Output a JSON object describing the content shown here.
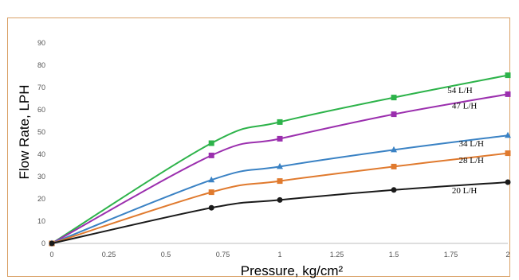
{
  "chart_data": {
    "type": "line",
    "title": "",
    "xlabel": "Pressure, kg/cm²",
    "ylabel": "Flow Rate, LPH",
    "xlim": [
      0,
      2
    ],
    "ylim": [
      0,
      90
    ],
    "x_ticks": [
      "0",
      "0.25",
      "0.5",
      "0.75",
      "1",
      "1.25",
      "1.5",
      "1.75",
      "2"
    ],
    "y_ticks": [
      "0",
      "10",
      "20",
      "30",
      "40",
      "50",
      "60",
      "70",
      "80",
      "90"
    ],
    "grid": false,
    "x": [
      0,
      0.7,
      1,
      1.5,
      2
    ],
    "series": [
      {
        "name": "54 L/H",
        "color": "#2db34a",
        "marker": "square",
        "values": [
          0,
          45,
          54.5,
          65.5,
          75.5
        ]
      },
      {
        "name": "47 L/H",
        "color": "#9b2fae",
        "marker": "square",
        "values": [
          0,
          39.5,
          47,
          58,
          67
        ]
      },
      {
        "name": "34 L/H",
        "color": "#3a82c4",
        "marker": "triangle",
        "values": [
          0,
          28.5,
          34.5,
          42,
          48.5
        ]
      },
      {
        "name": "28 L/H",
        "color": "#e07a2e",
        "marker": "square",
        "values": [
          0,
          23,
          28,
          34.5,
          40.5
        ]
      },
      {
        "name": "20 L/H",
        "color": "#1a1a1a",
        "marker": "circle",
        "values": [
          0,
          16,
          19.5,
          24,
          27.5
        ]
      }
    ]
  }
}
